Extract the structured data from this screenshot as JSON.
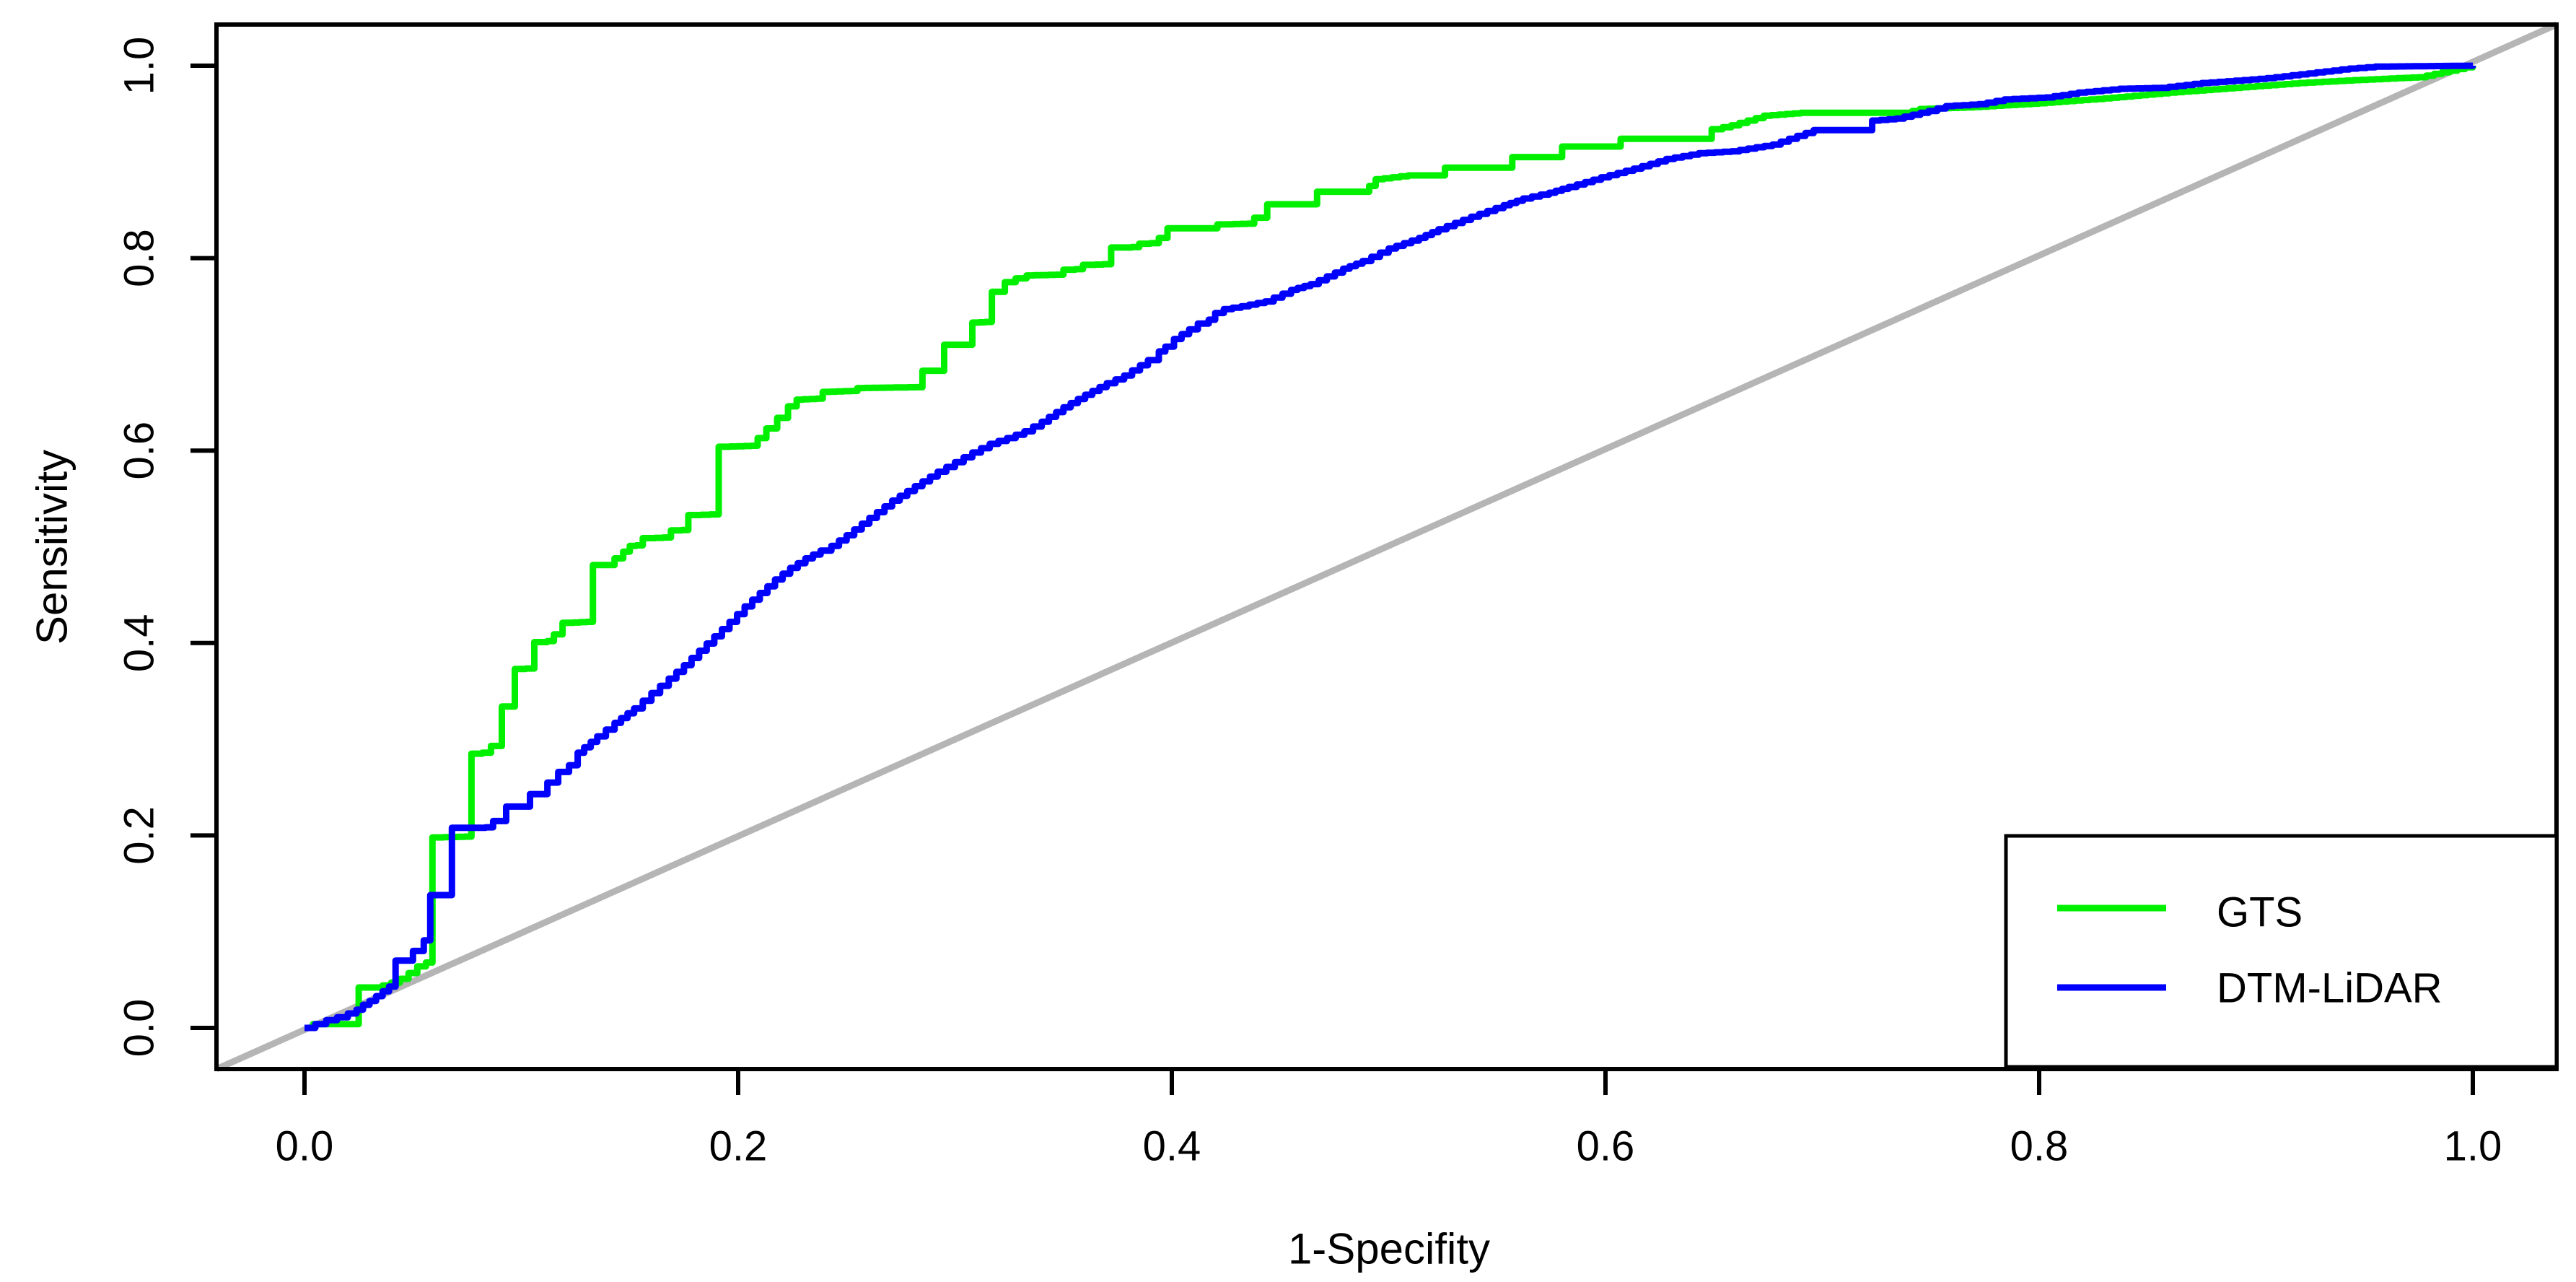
{
  "page": {
    "background": "#ffffff"
  },
  "axes": {
    "x_label": "1-Specifity",
    "y_label": "Sensitivity"
  },
  "legend": {
    "entries": [
      {
        "label": "GTS",
        "color": "#00f000"
      },
      {
        "label": "DTM-LiDAR",
        "color": "#0000ff"
      }
    ]
  },
  "colors": {
    "axis": "#000000",
    "text": "#000000",
    "reference": "#b5b5b5",
    "background": "#ffffff"
  },
  "chart_data": {
    "type": "line",
    "subtype": "roc-curve",
    "title": "",
    "xlabel": "1-Specifity",
    "ylabel": "Sensitivity",
    "xlim": [
      0,
      1
    ],
    "ylim": [
      0,
      1
    ],
    "x_ticks": [
      "0.0",
      "0.2",
      "0.4",
      "0.6",
      "0.8",
      "1.0"
    ],
    "y_ticks": [
      "0.0",
      "0.2",
      "0.4",
      "0.6",
      "0.8",
      "1.0"
    ],
    "grid": "off",
    "legend_position": "bottom-right",
    "reference_line": {
      "name": "chance-diagonal",
      "from": [
        0,
        0
      ],
      "to": [
        1,
        1
      ],
      "color": "#b5b5b5"
    },
    "series": [
      {
        "name": "GTS",
        "color": "#00f000",
        "points": [
          [
            0,
            0
          ],
          [
            0.004,
            0.004
          ],
          [
            0.006,
            0.004
          ],
          [
            0.025,
            0.004
          ],
          [
            0.025,
            0.042
          ],
          [
            0.033,
            0.042
          ],
          [
            0.036,
            0.044
          ],
          [
            0.04,
            0.047
          ],
          [
            0.044,
            0.051
          ],
          [
            0.048,
            0.057
          ],
          [
            0.052,
            0.064
          ],
          [
            0.056,
            0.068
          ],
          [
            0.059,
            0.068
          ],
          [
            0.059,
            0.143
          ],
          [
            0.06,
            0.145
          ],
          [
            0.061,
            0.145
          ],
          [
            0.061,
            0.198
          ],
          [
            0.077,
            0.199
          ],
          [
            0.078,
            0.199
          ],
          [
            0.078,
            0.285
          ],
          [
            0.086,
            0.287
          ],
          [
            0.088,
            0.293
          ],
          [
            0.091,
            0.293
          ],
          [
            0.092,
            0.334
          ],
          [
            0.097,
            0.335
          ],
          [
            0.098,
            0.373
          ],
          [
            0.106,
            0.374
          ],
          [
            0.108,
            0.401
          ],
          [
            0.112,
            0.402
          ],
          [
            0.115,
            0.409
          ],
          [
            0.119,
            0.414
          ],
          [
            0.121,
            0.421
          ],
          [
            0.13,
            0.422
          ],
          [
            0.133,
            0.444
          ],
          [
            0.135,
            0.456
          ],
          [
            0.137,
            0.469
          ],
          [
            0.139,
            0.481
          ],
          [
            0.143,
            0.488
          ],
          [
            0.147,
            0.495
          ],
          [
            0.15,
            0.501
          ],
          [
            0.156,
            0.502
          ],
          [
            0.158,
            0.509
          ],
          [
            0.169,
            0.51
          ],
          [
            0.171,
            0.517
          ],
          [
            0.177,
            0.518
          ],
          [
            0.179,
            0.533
          ],
          [
            0.191,
            0.534
          ],
          [
            0.193,
            0.604
          ],
          [
            0.206,
            0.605
          ],
          [
            0.209,
            0.613
          ],
          [
            0.213,
            0.623
          ],
          [
            0.218,
            0.634
          ],
          [
            0.223,
            0.646
          ],
          [
            0.227,
            0.653
          ],
          [
            0.236,
            0.654
          ],
          [
            0.239,
            0.661
          ],
          [
            0.252,
            0.662
          ],
          [
            0.255,
            0.665
          ],
          [
            0.285,
            0.666
          ],
          [
            0.287,
            0.683
          ],
          [
            0.295,
            0.683
          ],
          [
            0.296,
            0.71
          ],
          [
            0.305,
            0.71
          ],
          [
            0.308,
            0.733
          ],
          [
            0.317,
            0.734
          ],
          [
            0.318,
            0.744
          ],
          [
            0.32,
            0.765
          ],
          [
            0.323,
            0.775
          ],
          [
            0.328,
            0.779
          ],
          [
            0.333,
            0.782
          ],
          [
            0.35,
            0.783
          ],
          [
            0.352,
            0.788
          ],
          [
            0.359,
            0.789
          ],
          [
            0.361,
            0.793
          ],
          [
            0.372,
            0.794
          ],
          [
            0.374,
            0.8
          ],
          [
            0.376,
            0.803
          ],
          [
            0.378,
            0.811
          ],
          [
            0.385,
            0.812
          ],
          [
            0.386,
            0.815
          ],
          [
            0.394,
            0.816
          ],
          [
            0.395,
            0.821
          ],
          [
            0.398,
            0.825
          ],
          [
            0.4,
            0.831
          ],
          [
            0.421,
            0.831
          ],
          [
            0.422,
            0.835
          ],
          [
            0.438,
            0.836
          ],
          [
            0.44,
            0.842
          ],
          [
            0.444,
            0.856
          ],
          [
            0.464,
            0.856
          ],
          [
            0.467,
            0.869
          ],
          [
            0.488,
            0.869
          ],
          [
            0.491,
            0.875
          ],
          [
            0.494,
            0.882
          ],
          [
            0.509,
            0.886
          ],
          [
            0.526,
            0.886
          ],
          [
            0.528,
            0.894
          ],
          [
            0.553,
            0.894
          ],
          [
            0.557,
            0.905
          ],
          [
            0.577,
            0.905
          ],
          [
            0.58,
            0.916
          ],
          [
            0.604,
            0.916
          ],
          [
            0.607,
            0.924
          ],
          [
            0.649,
            0.924
          ],
          [
            0.65,
            0.934
          ],
          [
            0.658,
            0.938
          ],
          [
            0.673,
            0.948
          ],
          [
            0.69,
            0.951
          ],
          [
            0.738,
            0.951
          ],
          [
            0.745,
            0.955
          ],
          [
            0.77,
            0.957
          ],
          [
            0.8,
            0.961
          ],
          [
            0.83,
            0.966
          ],
          [
            0.86,
            0.972
          ],
          [
            0.89,
            0.977
          ],
          [
            0.92,
            0.982
          ],
          [
            0.945,
            0.985
          ],
          [
            0.965,
            0.987
          ],
          [
            0.975,
            0.988
          ],
          [
            1,
            1
          ]
        ]
      },
      {
        "name": "DTM-LiDAR",
        "color": "#0000ff",
        "points": [
          [
            0,
            0
          ],
          [
            0.005,
            0.004
          ],
          [
            0.01,
            0.008
          ],
          [
            0.015,
            0.011
          ],
          [
            0.02,
            0.015
          ],
          [
            0.024,
            0.019
          ],
          [
            0.027,
            0.024
          ],
          [
            0.03,
            0.028
          ],
          [
            0.033,
            0.033
          ],
          [
            0.036,
            0.038
          ],
          [
            0.039,
            0.043
          ],
          [
            0.042,
            0.05
          ],
          [
            0.044,
            0.058
          ],
          [
            0.046,
            0.07
          ],
          [
            0.05,
            0.08
          ],
          [
            0.055,
            0.091
          ],
          [
            0.058,
            0.1
          ],
          [
            0.06,
            0.108
          ],
          [
            0.061,
            0.113
          ],
          [
            0.063,
            0.123
          ],
          [
            0.064,
            0.133
          ],
          [
            0.065,
            0.138
          ],
          [
            0.068,
            0.141
          ],
          [
            0.07,
            0.146
          ],
          [
            0.0705,
            0.153
          ],
          [
            0.071,
            0.16
          ],
          [
            0.072,
            0.168
          ],
          [
            0.073,
            0.171
          ],
          [
            0.075,
            0.175
          ],
          [
            0.076,
            0.185
          ],
          [
            0.077,
            0.189
          ],
          [
            0.078,
            0.198
          ],
          [
            0.079,
            0.203
          ],
          [
            0.08,
            0.208
          ],
          [
            0.087,
            0.209
          ],
          [
            0.088,
            0.213
          ],
          [
            0.09,
            0.215
          ],
          [
            0.093,
            0.218
          ],
          [
            0.095,
            0.22
          ],
          [
            0.097,
            0.224
          ],
          [
            0.099,
            0.228
          ],
          [
            0.101,
            0.23
          ],
          [
            0.104,
            0.235
          ],
          [
            0.106,
            0.24
          ],
          [
            0.107,
            0.243
          ],
          [
            0.112,
            0.255
          ],
          [
            0.117,
            0.266
          ],
          [
            0.122,
            0.273
          ],
          [
            0.126,
            0.286
          ],
          [
            0.135,
            0.303
          ],
          [
            0.143,
            0.317
          ],
          [
            0.152,
            0.332
          ],
          [
            0.16,
            0.348
          ],
          [
            0.168,
            0.363
          ],
          [
            0.175,
            0.377
          ],
          [
            0.182,
            0.392
          ],
          [
            0.189,
            0.407
          ],
          [
            0.196,
            0.422
          ],
          [
            0.203,
            0.438
          ],
          [
            0.21,
            0.452
          ],
          [
            0.217,
            0.466
          ],
          [
            0.224,
            0.478
          ],
          [
            0.231,
            0.488
          ],
          [
            0.238,
            0.496
          ],
          [
            0.243,
            0.501
          ],
          [
            0.25,
            0.512
          ],
          [
            0.257,
            0.524
          ],
          [
            0.264,
            0.536
          ],
          [
            0.271,
            0.548
          ],
          [
            0.278,
            0.558
          ],
          [
            0.285,
            0.568
          ],
          [
            0.292,
            0.578
          ],
          [
            0.3,
            0.588
          ],
          [
            0.308,
            0.598
          ],
          [
            0.316,
            0.607
          ],
          [
            0.324,
            0.613
          ],
          [
            0.332,
            0.62
          ],
          [
            0.34,
            0.63
          ],
          [
            0.35,
            0.645
          ],
          [
            0.36,
            0.658
          ],
          [
            0.37,
            0.67
          ],
          [
            0.378,
            0.678
          ],
          [
            0.389,
            0.694
          ],
          [
            0.394,
            0.703
          ],
          [
            0.397,
            0.708
          ],
          [
            0.401,
            0.716
          ],
          [
            0.408,
            0.726
          ],
          [
            0.412,
            0.732
          ],
          [
            0.417,
            0.736
          ],
          [
            0.42,
            0.743
          ],
          [
            0.424,
            0.747
          ],
          [
            0.432,
            0.75
          ],
          [
            0.443,
            0.755
          ],
          [
            0.455,
            0.767
          ],
          [
            0.464,
            0.773
          ],
          [
            0.479,
            0.789
          ],
          [
            0.488,
            0.797
          ],
          [
            0.5,
            0.81
          ],
          [
            0.514,
            0.821
          ],
          [
            0.523,
            0.83
          ],
          [
            0.538,
            0.843
          ],
          [
            0.553,
            0.855
          ],
          [
            0.562,
            0.862
          ],
          [
            0.574,
            0.868
          ],
          [
            0.583,
            0.874
          ],
          [
            0.598,
            0.884
          ],
          [
            0.613,
            0.893
          ],
          [
            0.628,
            0.903
          ],
          [
            0.643,
            0.909
          ],
          [
            0.658,
            0.911
          ],
          [
            0.677,
            0.918
          ],
          [
            0.696,
            0.933
          ],
          [
            0.719,
            0.933
          ],
          [
            0.723,
            0.943
          ],
          [
            0.734,
            0.945
          ],
          [
            0.749,
            0.953
          ],
          [
            0.757,
            0.958
          ],
          [
            0.772,
            0.96
          ],
          [
            0.784,
            0.965
          ],
          [
            0.803,
            0.967
          ],
          [
            0.818,
            0.972
          ],
          [
            0.837,
            0.976
          ],
          [
            0.856,
            0.977
          ],
          [
            0.875,
            0.982
          ],
          [
            0.894,
            0.985
          ],
          [
            0.905,
            0.987
          ],
          [
            0.924,
            0.992
          ],
          [
            0.943,
            0.997
          ],
          [
            0.955,
            0.999
          ],
          [
            1,
            1
          ]
        ]
      }
    ]
  }
}
